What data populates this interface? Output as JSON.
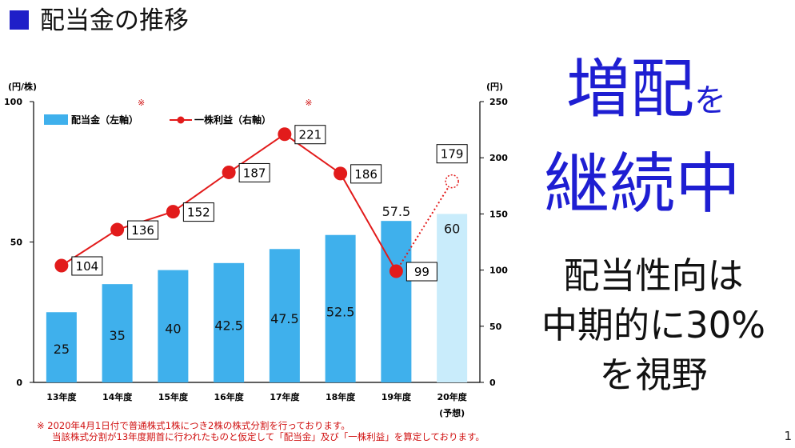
{
  "title": "配当金の推移",
  "headline": {
    "line1_main": "増配",
    "line1_small": "を",
    "line2": "継続中"
  },
  "policy": {
    "line1": "配当性向は",
    "line2": "中期的に30%",
    "line3": "を視野"
  },
  "notes": [
    "※ 2020年4月1日付で普通株式1株につき2株の株式分割を行っております。",
    "当該株式分割が13年度期首に行われたものと仮定して「配当金」及び「一株利益」を算定しております。"
  ],
  "page_number": "1",
  "chart_data": {
    "type": "bar",
    "categories": [
      "13年度",
      "14年度",
      "15年度",
      "16年度",
      "17年度",
      "18年度",
      "19年度",
      "20年度"
    ],
    "category_sublabels": [
      "",
      "",
      "",
      "",
      "",
      "",
      "",
      "(予想)"
    ],
    "left_axis": {
      "unit": "(円/株)",
      "ticks": [
        0,
        50,
        100
      ],
      "range": [
        0,
        100
      ]
    },
    "right_axis": {
      "unit": "(円)",
      "ticks": [
        0,
        50,
        100,
        150,
        200,
        250
      ],
      "range": [
        0,
        250
      ]
    },
    "legend": {
      "bar": "配当金（左軸）",
      "line": "一株利益（右軸）",
      "placement": "top-left"
    },
    "series": [
      {
        "name": "配当金（左軸）",
        "kind": "bar",
        "axis": "left",
        "values": [
          25,
          35,
          40,
          42.5,
          47.5,
          52.5,
          57.5,
          60
        ],
        "labels": [
          "25",
          "35",
          "40",
          "42.5",
          "47.5",
          "52.5",
          "57.5",
          "60"
        ],
        "forecast_index": 7
      },
      {
        "name": "一株利益（右軸）",
        "kind": "line",
        "axis": "right",
        "values": [
          104,
          136,
          152,
          187,
          221,
          186,
          99,
          179
        ],
        "labels": [
          "104",
          "136",
          "152",
          "187",
          "221",
          "186",
          "99",
          "179"
        ],
        "forecast_index": 7
      }
    ],
    "marks": [
      {
        "index": 1,
        "text": "※"
      },
      {
        "index": 4,
        "text": "※"
      }
    ],
    "colors": {
      "bar": "#3fb0ec",
      "bar_forecast": "#c9ecfb",
      "line": "#e21b1b",
      "mark": "#d01010"
    }
  }
}
